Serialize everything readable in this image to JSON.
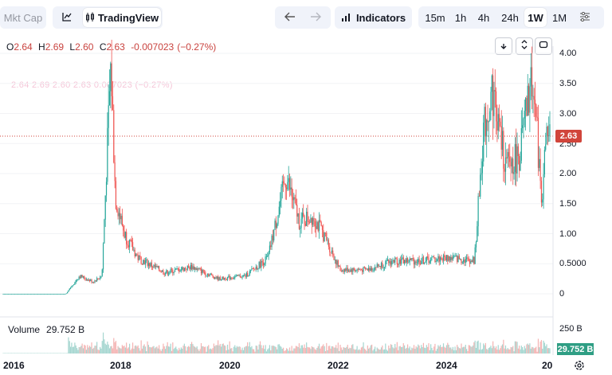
{
  "toolbar": {
    "mkt_cap": "Mkt Cap",
    "brand": "TradingView",
    "indicators": "Indicators",
    "intervals": [
      "15m",
      "1h",
      "4h",
      "24h",
      "1W",
      "1M"
    ],
    "active_interval": "1W"
  },
  "ohlc": {
    "o_key": "O",
    "o": "2.64",
    "h_key": "H",
    "h": "2.69",
    "l_key": "L",
    "l": "2.60",
    "c_key": "C",
    "c": "2.63",
    "change": "-0.007023",
    "change_pct": "(−0.27%)"
  },
  "ghost_text": "2.64   2.69   2.60   2.63   0.007023   (−0.27%)",
  "price_axis": [
    "4.00",
    "3.50",
    "3.00",
    "2.50",
    "2.00",
    "1.50",
    "1.00",
    "0.5000",
    "0"
  ],
  "time_axis": [
    "2016",
    "2018",
    "2020",
    "2022",
    "2024",
    "20"
  ],
  "last_price": "2.63",
  "volume": {
    "label": "Volume",
    "value": "29.752 B",
    "axis_top": "250 B",
    "tag": "29.752 B"
  },
  "colors": {
    "up": "#26a69a",
    "down": "#ef5350",
    "pricetag": "#d1453b",
    "voltag": "#2f9e84"
  },
  "chart_data": {
    "type": "candlestick",
    "interval": "1W",
    "ylim": [
      0,
      4.2
    ],
    "series": [
      {
        "name": "price",
        "points": [
          {
            "x": "2016-01",
            "y": 0.0
          },
          {
            "x": "2016-07",
            "y": 0.0
          },
          {
            "x": "2017-03",
            "y": 0.0
          },
          {
            "x": "2017-06",
            "y": 0.3
          },
          {
            "x": "2017-09",
            "y": 0.2
          },
          {
            "x": "2017-11",
            "y": 0.3
          },
          {
            "x": "2018-01",
            "y": 3.84
          },
          {
            "x": "2018-02",
            "y": 1.6
          },
          {
            "x": "2018-04",
            "y": 1.0
          },
          {
            "x": "2018-07",
            "y": 0.6
          },
          {
            "x": "2019-01",
            "y": 0.35
          },
          {
            "x": "2019-07",
            "y": 0.45
          },
          {
            "x": "2020-01",
            "y": 0.25
          },
          {
            "x": "2020-07",
            "y": 0.3
          },
          {
            "x": "2020-12",
            "y": 0.6
          },
          {
            "x": "2021-04",
            "y": 1.95
          },
          {
            "x": "2021-07",
            "y": 1.2
          },
          {
            "x": "2021-10",
            "y": 1.3
          },
          {
            "x": "2022-01",
            "y": 0.9
          },
          {
            "x": "2022-04",
            "y": 0.4
          },
          {
            "x": "2022-10",
            "y": 0.4
          },
          {
            "x": "2023-04",
            "y": 0.55
          },
          {
            "x": "2023-10",
            "y": 0.55
          },
          {
            "x": "2024-04",
            "y": 0.6
          },
          {
            "x": "2024-10",
            "y": 0.55
          },
          {
            "x": "2024-12",
            "y": 2.7
          },
          {
            "x": "2025-02",
            "y": 3.4
          },
          {
            "x": "2025-05",
            "y": 2.1
          },
          {
            "x": "2025-08",
            "y": 2.3
          },
          {
            "x": "2025-11",
            "y": 3.65
          },
          {
            "x": "2026-01",
            "y": 1.55
          },
          {
            "x": "2026-02",
            "y": 2.63
          }
        ]
      }
    ]
  }
}
